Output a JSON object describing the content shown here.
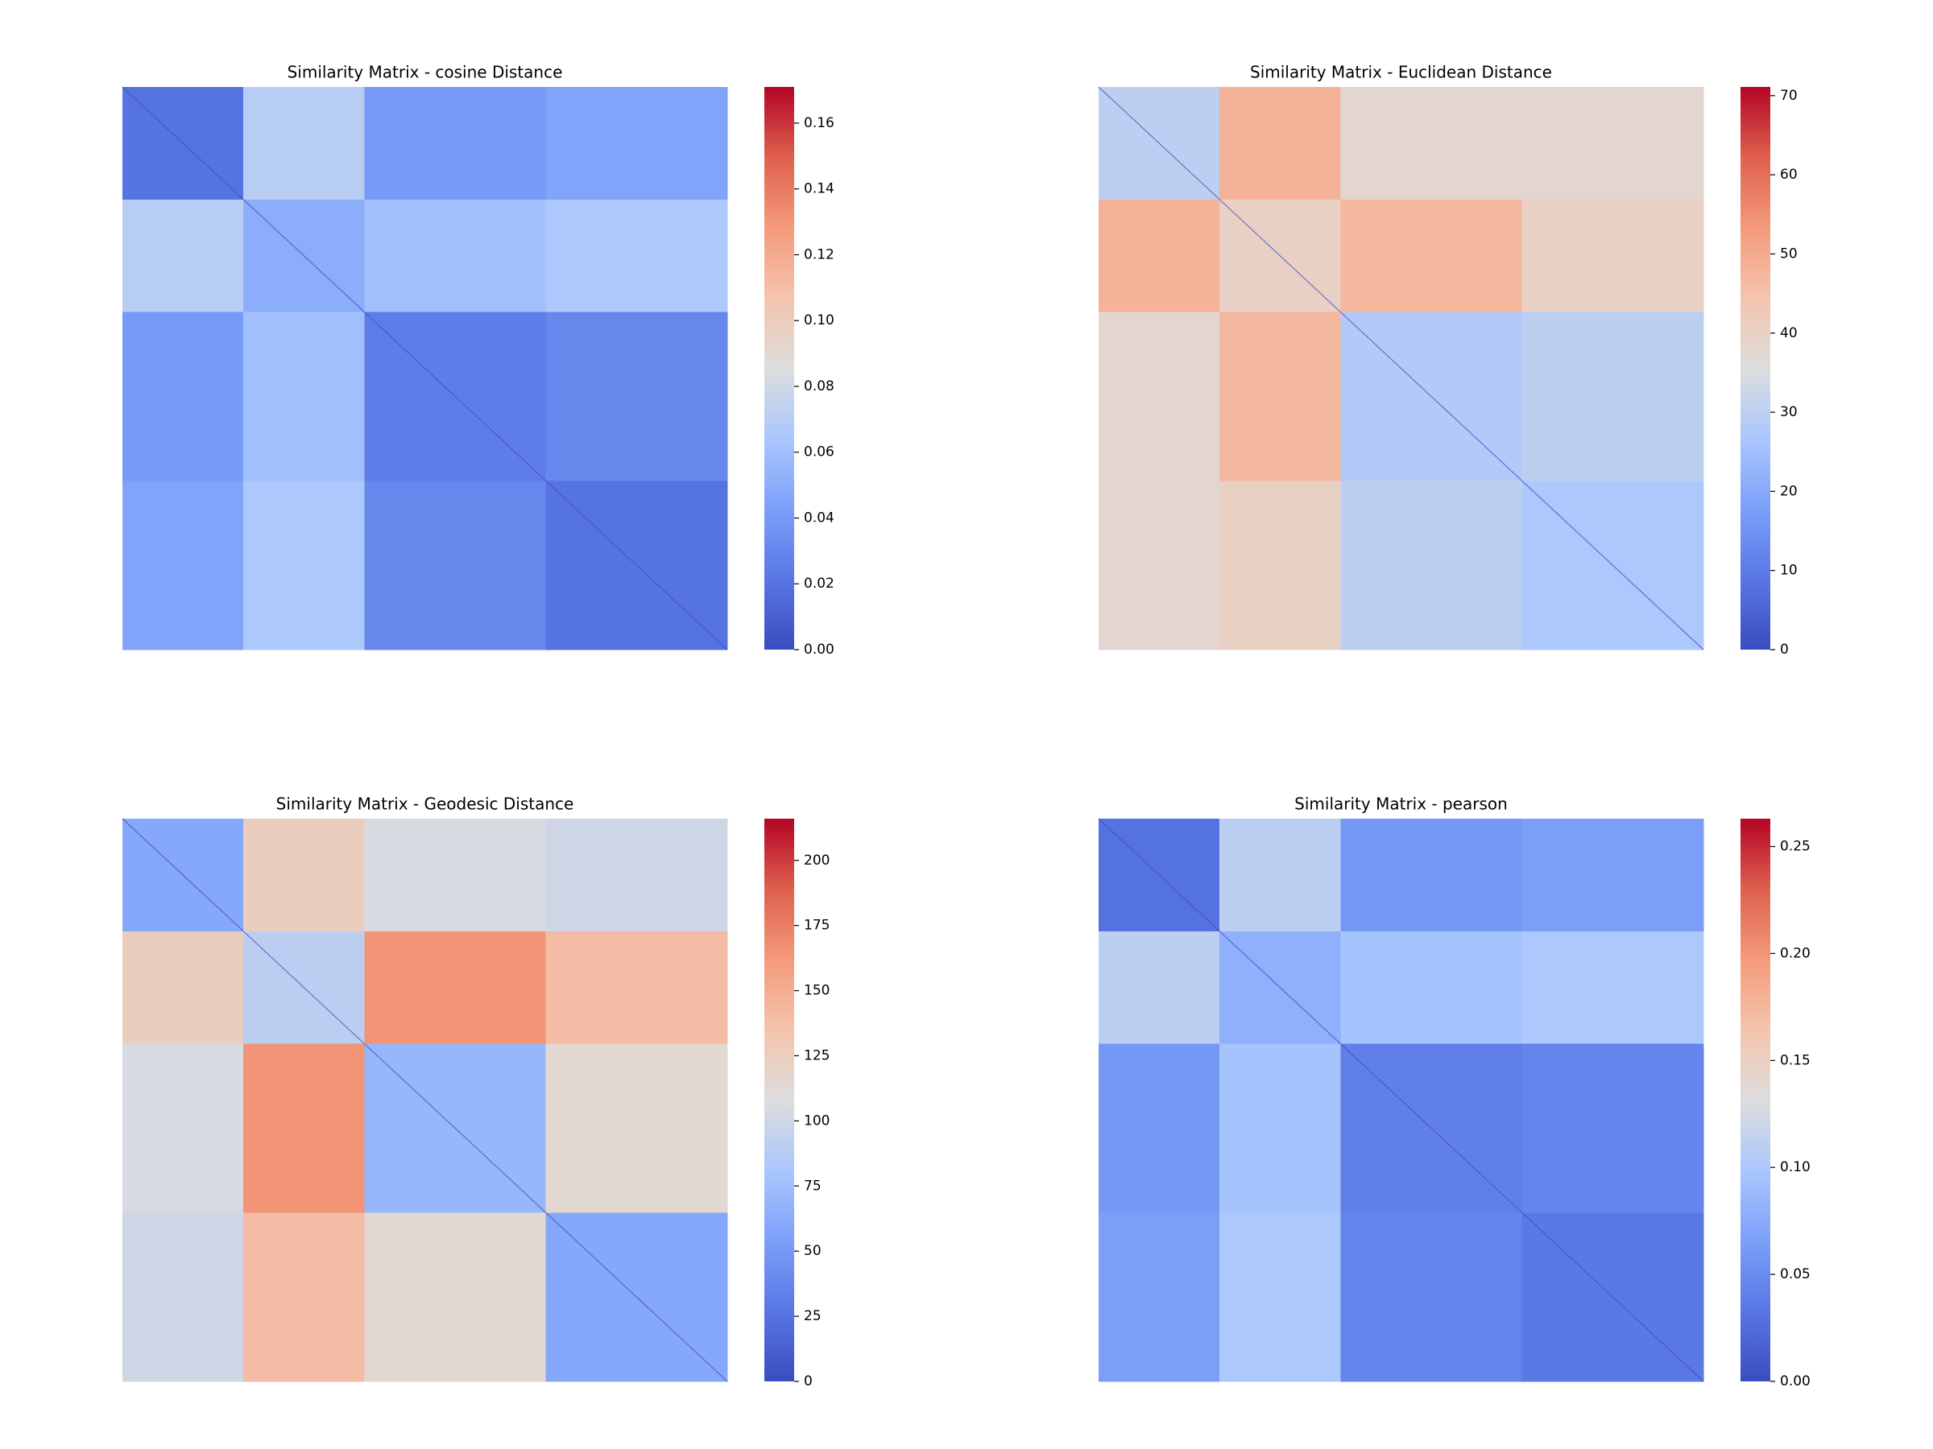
{
  "chart_data": [
    {
      "type": "heatmap",
      "title": "Similarity Matrix - cosine Distance",
      "colormap": "coolwarm",
      "clim": [
        0,
        0.171
      ],
      "cticks": [
        {
          "value": 0,
          "label": "0.00"
        },
        {
          "value": 0.02,
          "label": "0.02"
        },
        {
          "value": 0.04,
          "label": "0.04"
        },
        {
          "value": 0.06,
          "label": "0.06"
        },
        {
          "value": 0.08,
          "label": "0.08"
        },
        {
          "value": 0.1,
          "label": "0.10"
        },
        {
          "value": 0.12,
          "label": "0.12"
        },
        {
          "value": 0.14,
          "label": "0.14"
        },
        {
          "value": 0.16,
          "label": "0.16"
        }
      ],
      "values": [
        [
          0.02,
          0.02,
          0.07,
          0.07,
          0.04,
          0.04,
          0.04,
          0.045,
          0.045,
          0.045
        ],
        [
          0.02,
          0.02,
          0.07,
          0.07,
          0.04,
          0.04,
          0.04,
          0.045,
          0.045,
          0.045
        ],
        [
          0.07,
          0.07,
          0.05,
          0.05,
          0.06,
          0.06,
          0.06,
          0.065,
          0.065,
          0.065
        ],
        [
          0.07,
          0.07,
          0.05,
          0.05,
          0.06,
          0.06,
          0.06,
          0.065,
          0.065,
          0.065
        ],
        [
          0.04,
          0.04,
          0.06,
          0.06,
          0.025,
          0.025,
          0.025,
          0.03,
          0.03,
          0.03
        ],
        [
          0.04,
          0.04,
          0.06,
          0.06,
          0.025,
          0.025,
          0.025,
          0.03,
          0.03,
          0.03
        ],
        [
          0.04,
          0.04,
          0.06,
          0.06,
          0.025,
          0.025,
          0.025,
          0.03,
          0.03,
          0.03
        ],
        [
          0.045,
          0.045,
          0.065,
          0.065,
          0.03,
          0.03,
          0.03,
          0.02,
          0.02,
          0.02
        ],
        [
          0.045,
          0.045,
          0.065,
          0.065,
          0.03,
          0.03,
          0.03,
          0.02,
          0.02,
          0.02
        ],
        [
          0.045,
          0.045,
          0.065,
          0.065,
          0.03,
          0.03,
          0.03,
          0.02,
          0.02,
          0.02
        ]
      ]
    },
    {
      "type": "heatmap",
      "title": "Similarity Matrix - Euclidean Distance",
      "colormap": "coolwarm",
      "clim": [
        0,
        71.1
      ],
      "cticks": [
        0,
        10,
        20,
        30,
        40,
        50,
        60,
        70
      ],
      "values": [
        [
          30,
          30,
          48,
          48,
          38,
          38,
          38,
          38,
          38,
          38
        ],
        [
          30,
          30,
          48,
          48,
          38,
          38,
          38,
          38,
          38,
          38
        ],
        [
          48,
          48,
          40,
          40,
          47,
          47,
          47,
          40,
          40,
          40
        ],
        [
          48,
          48,
          40,
          40,
          47,
          47,
          47,
          40,
          40,
          40
        ],
        [
          38,
          38,
          47,
          47,
          28,
          28,
          28,
          30,
          30,
          30
        ],
        [
          38,
          38,
          47,
          47,
          28,
          28,
          28,
          30,
          30,
          30
        ],
        [
          38,
          38,
          47,
          47,
          28,
          28,
          28,
          30,
          30,
          30
        ],
        [
          38,
          38,
          40,
          40,
          30,
          30,
          30,
          27,
          27,
          27
        ],
        [
          38,
          38,
          40,
          40,
          30,
          30,
          30,
          27,
          27,
          27
        ],
        [
          38,
          38,
          40,
          40,
          30,
          30,
          30,
          27,
          27,
          27
        ]
      ]
    },
    {
      "type": "heatmap",
      "title": "Similarity Matrix - Geodesic Distance",
      "colormap": "coolwarm",
      "clim": [
        0,
        216
      ],
      "cticks": [
        0,
        25,
        50,
        75,
        100,
        125,
        150,
        175,
        200
      ],
      "values": [
        [
          60,
          60,
          125,
          125,
          105,
          105,
          105,
          100,
          100,
          100
        ],
        [
          60,
          60,
          125,
          125,
          105,
          105,
          105,
          100,
          100,
          100
        ],
        [
          125,
          125,
          90,
          90,
          165,
          165,
          165,
          140,
          140,
          140
        ],
        [
          125,
          125,
          90,
          90,
          165,
          165,
          165,
          140,
          140,
          140
        ],
        [
          105,
          105,
          165,
          165,
          70,
          70,
          70,
          115,
          115,
          115
        ],
        [
          105,
          105,
          165,
          165,
          70,
          70,
          70,
          115,
          115,
          115
        ],
        [
          105,
          105,
          165,
          165,
          70,
          70,
          70,
          115,
          115,
          115
        ],
        [
          100,
          100,
          140,
          140,
          115,
          115,
          115,
          60,
          60,
          60
        ],
        [
          100,
          100,
          140,
          140,
          115,
          115,
          115,
          60,
          60,
          60
        ],
        [
          100,
          100,
          140,
          140,
          115,
          115,
          115,
          60,
          60,
          60
        ]
      ]
    },
    {
      "type": "heatmap",
      "title": "Similarity Matrix - pearson",
      "colormap": "coolwarm",
      "clim": [
        0,
        0.263
      ],
      "cticks": [
        {
          "value": 0,
          "label": "0.00"
        },
        {
          "value": 0.05,
          "label": "0.05"
        },
        {
          "value": 0.1,
          "label": "0.10"
        },
        {
          "value": 0.15,
          "label": "0.15"
        },
        {
          "value": 0.2,
          "label": "0.20"
        },
        {
          "value": 0.25,
          "label": "0.25"
        }
      ],
      "values": [
        [
          0.03,
          0.03,
          0.11,
          0.11,
          0.06,
          0.06,
          0.06,
          0.065,
          0.065,
          0.065
        ],
        [
          0.03,
          0.03,
          0.11,
          0.11,
          0.06,
          0.06,
          0.06,
          0.065,
          0.065,
          0.065
        ],
        [
          0.11,
          0.11,
          0.08,
          0.08,
          0.095,
          0.095,
          0.095,
          0.1,
          0.1,
          0.1
        ],
        [
          0.11,
          0.11,
          0.08,
          0.08,
          0.095,
          0.095,
          0.095,
          0.1,
          0.1,
          0.1
        ],
        [
          0.06,
          0.06,
          0.095,
          0.095,
          0.04,
          0.04,
          0.04,
          0.045,
          0.045,
          0.045
        ],
        [
          0.06,
          0.06,
          0.095,
          0.095,
          0.04,
          0.04,
          0.04,
          0.045,
          0.045,
          0.045
        ],
        [
          0.06,
          0.06,
          0.095,
          0.095,
          0.04,
          0.04,
          0.04,
          0.045,
          0.045,
          0.045
        ],
        [
          0.065,
          0.065,
          0.1,
          0.1,
          0.045,
          0.045,
          0.045,
          0.035,
          0.035,
          0.035
        ],
        [
          0.065,
          0.065,
          0.1,
          0.1,
          0.045,
          0.045,
          0.045,
          0.035,
          0.035,
          0.035
        ],
        [
          0.065,
          0.065,
          0.1,
          0.1,
          0.045,
          0.045,
          0.045,
          0.035,
          0.035,
          0.035
        ]
      ]
    }
  ]
}
